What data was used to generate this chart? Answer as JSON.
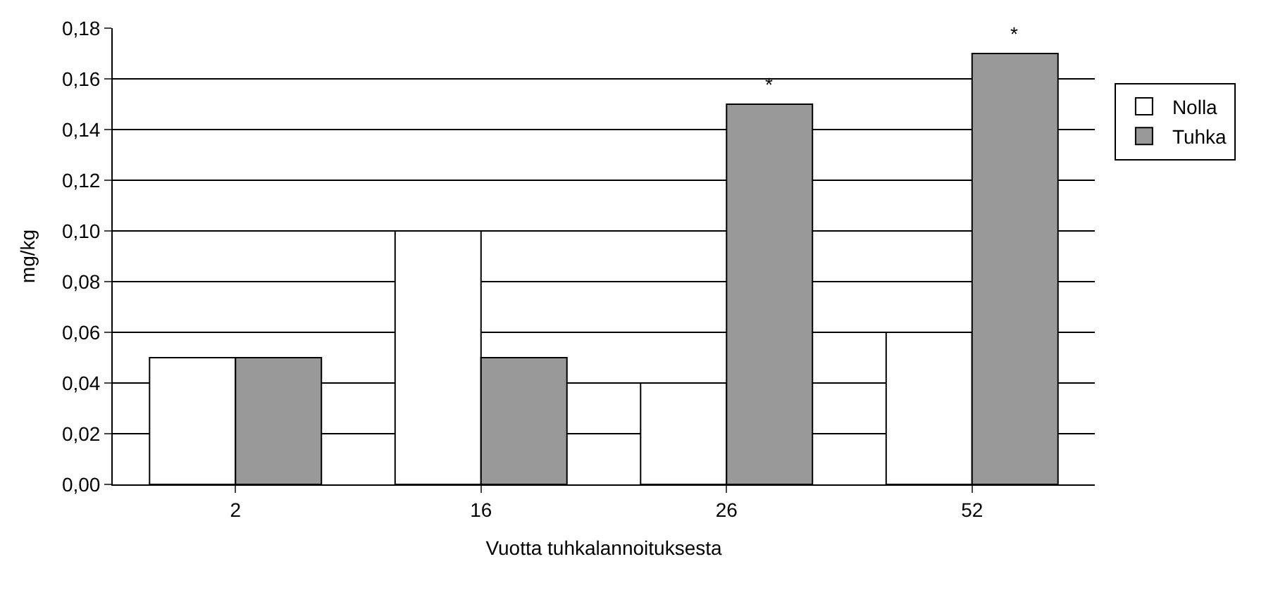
{
  "chart_data": {
    "type": "bar",
    "xlabel": "Vuotta tuhkalannoituksesta",
    "ylabel": "mg/kg",
    "categories": [
      "2",
      "16",
      "26",
      "52"
    ],
    "series": [
      {
        "name": "Nolla",
        "color": "#ffffff",
        "values": [
          0.05,
          0.1,
          0.04,
          0.06
        ]
      },
      {
        "name": "Tuhka",
        "color": "#999999",
        "values": [
          0.05,
          0.05,
          0.15,
          0.17
        ]
      }
    ],
    "annotations": [
      {
        "text": "*",
        "x": "26",
        "y": 0.15
      },
      {
        "text": "*",
        "x": "52",
        "y": 0.17
      }
    ],
    "ylim": [
      0,
      0.18
    ],
    "yticks": [
      {
        "value": 0,
        "label": "0,00"
      },
      {
        "value": 0.02,
        "label": "0,02"
      },
      {
        "value": 0.04,
        "label": "0,04"
      },
      {
        "value": 0.06,
        "label": "0,06"
      },
      {
        "value": 0.08,
        "label": "0,08"
      },
      {
        "value": 0.1,
        "label": "0,10"
      },
      {
        "value": 0.12,
        "label": "0,12"
      },
      {
        "value": 0.14,
        "label": "0,14"
      },
      {
        "value": 0.16,
        "label": "0,16"
      },
      {
        "value": 0.18,
        "label": "0,18"
      }
    ],
    "grid": "y",
    "legend": "right"
  }
}
